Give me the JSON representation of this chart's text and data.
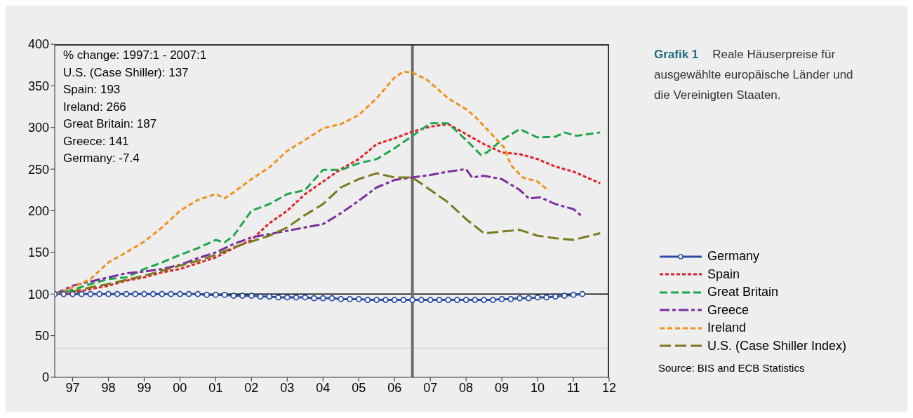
{
  "chart_data": {
    "type": "line",
    "title": "Grafik 1",
    "subtitle": "Reale Häuserpreise für ausgewählte europäische Länder und die Vereinigten Staaten.",
    "annotations": [
      "% change: 1997:1 - 2007:1",
      "U.S. (Case Shiller): 137",
      "Spain: 193",
      "Ireland: 266",
      "Great Britain: 187",
      "Greece: 141",
      "Germany: -7.4",
      "Source: BIS and ECB  Statistics"
    ],
    "xlim": [
      "1997-01",
      "2012-07"
    ],
    "xticks": [
      {
        "value": "1997-07",
        "label": "97"
      },
      {
        "value": "1998-07",
        "label": "98"
      },
      {
        "value": "1999-07",
        "label": "99"
      },
      {
        "value": "2000-07",
        "label": "00"
      },
      {
        "value": "2001-07",
        "label": "01"
      },
      {
        "value": "2002-07",
        "label": "02"
      },
      {
        "value": "2003-07",
        "label": "03"
      },
      {
        "value": "2004-07",
        "label": "04"
      },
      {
        "value": "2005-07",
        "label": "05"
      },
      {
        "value": "2006-07",
        "label": "06"
      },
      {
        "value": "2007-07",
        "label": "07"
      },
      {
        "value": "2008-07",
        "label": "08"
      },
      {
        "value": "2009-07",
        "label": "09"
      },
      {
        "value": "2010-07",
        "label": "10"
      },
      {
        "value": "2011-07",
        "label": "11"
      },
      {
        "value": "2012-07",
        "label": "12"
      }
    ],
    "ylim": [
      0,
      400
    ],
    "yticks": [
      0,
      50,
      100,
      150,
      200,
      250,
      300,
      350,
      400
    ],
    "legend": "right",
    "grid": false,
    "ref_lines": [
      {
        "axis": "y",
        "value": 100,
        "color": "#000000"
      },
      {
        "axis": "y",
        "value": 35,
        "color": "#d4d4d4"
      },
      {
        "axis": "x",
        "value": "2007-01",
        "color": "#6e6e6e"
      }
    ],
    "series": [
      {
        "name": "Germany",
        "color": "#2e4ea3",
        "marker": "circle",
        "line_style": "solid",
        "x": [
          "1997-01",
          "1997-04",
          "1997-07",
          "1997-10",
          "1998-01",
          "1998-04",
          "1998-07",
          "1998-10",
          "1999-01",
          "1999-04",
          "1999-07",
          "1999-10",
          "2000-01",
          "2000-04",
          "2000-07",
          "2000-10",
          "2001-01",
          "2001-04",
          "2001-07",
          "2001-10",
          "2002-01",
          "2002-04",
          "2002-07",
          "2002-10",
          "2003-01",
          "2003-04",
          "2003-07",
          "2003-10",
          "2004-01",
          "2004-04",
          "2004-07",
          "2004-10",
          "2005-01",
          "2005-04",
          "2005-07",
          "2005-10",
          "2006-01",
          "2006-04",
          "2006-07",
          "2006-10",
          "2007-01",
          "2007-04",
          "2007-07",
          "2007-10",
          "2008-01",
          "2008-04",
          "2008-07",
          "2008-10",
          "2009-01",
          "2009-04",
          "2009-07",
          "2009-10",
          "2010-01",
          "2010-04",
          "2010-07",
          "2010-10",
          "2011-01",
          "2011-04",
          "2011-07",
          "2011-10"
        ],
        "values": [
          100,
          100,
          100,
          100,
          100,
          100,
          100,
          100,
          100,
          100,
          100,
          100,
          100,
          100,
          100,
          100,
          100,
          99,
          99,
          99,
          98,
          98,
          98,
          97,
          97,
          96,
          96,
          96,
          96,
          95,
          95,
          95,
          94,
          94,
          94,
          93,
          93,
          93,
          93,
          93,
          93,
          93,
          93,
          93,
          93,
          93,
          93,
          93,
          93,
          93,
          94,
          94,
          95,
          95,
          96,
          96,
          97,
          98,
          99,
          100
        ]
      },
      {
        "name": "Spain",
        "color": "#e0202a",
        "marker": "none",
        "line_style": "dashed",
        "x": [
          "1997-01",
          "1997-07",
          "1998-01",
          "1998-07",
          "1999-01",
          "1999-07",
          "2000-01",
          "2000-07",
          "2001-01",
          "2001-07",
          "2002-01",
          "2002-07",
          "2003-01",
          "2003-07",
          "2004-01",
          "2004-07",
          "2005-01",
          "2005-07",
          "2006-01",
          "2006-07",
          "2007-01",
          "2007-07",
          "2008-01",
          "2008-07",
          "2009-01",
          "2009-07",
          "2010-01",
          "2010-07",
          "2011-01",
          "2011-07",
          "2012-04"
        ],
        "values": [
          100,
          101,
          106,
          110,
          116,
          120,
          126,
          130,
          137,
          144,
          155,
          165,
          185,
          200,
          220,
          235,
          250,
          262,
          280,
          287,
          295,
          301,
          304,
          292,
          280,
          270,
          268,
          262,
          253,
          247,
          233
        ]
      },
      {
        "name": "Great Britain",
        "color": "#1fa64a",
        "marker": "none",
        "line_style": "dashed",
        "x": [
          "1997-01",
          "1997-07",
          "1998-01",
          "1998-07",
          "1999-01",
          "1999-07",
          "2000-01",
          "2000-07",
          "2001-01",
          "2001-07",
          "2001-10",
          "2002-01",
          "2002-07",
          "2003-01",
          "2003-07",
          "2004-01",
          "2004-07",
          "2005-01",
          "2005-07",
          "2006-01",
          "2006-07",
          "2007-01",
          "2007-07",
          "2008-01",
          "2008-07",
          "2008-12",
          "2009-02",
          "2009-07",
          "2010-01",
          "2010-07",
          "2011-01",
          "2011-04",
          "2011-08",
          "2012-04"
        ],
        "values": [
          100,
          105,
          112,
          118,
          120,
          130,
          138,
          147,
          155,
          165,
          162,
          170,
          200,
          208,
          220,
          225,
          249,
          249,
          257,
          262,
          275,
          290,
          305,
          305,
          285,
          267,
          270,
          285,
          298,
          288,
          289,
          294,
          290,
          294
        ]
      },
      {
        "name": "Greece",
        "color": "#7b2c9e",
        "marker": "none",
        "line_style": "dashed",
        "x": [
          "1997-01",
          "1997-07",
          "1998-01",
          "1998-07",
          "1999-01",
          "1999-07",
          "2000-01",
          "2000-07",
          "2001-01",
          "2001-07",
          "2002-01",
          "2002-07",
          "2003-01",
          "2003-07",
          "2004-01",
          "2004-07",
          "2005-01",
          "2005-07",
          "2006-01",
          "2006-07",
          "2007-01",
          "2007-07",
          "2008-01",
          "2008-07",
          "2008-09",
          "2009-01",
          "2009-07",
          "2010-01",
          "2010-04",
          "2010-08",
          "2011-01",
          "2011-07",
          "2011-10"
        ],
        "values": [
          100,
          110,
          115,
          120,
          125,
          127,
          130,
          135,
          143,
          150,
          160,
          168,
          172,
          176,
          180,
          184,
          197,
          212,
          228,
          237,
          240,
          243,
          247,
          250,
          240,
          242,
          238,
          225,
          215,
          216,
          208,
          202,
          193
        ]
      },
      {
        "name": "Ireland",
        "color": "#f0921e",
        "marker": "none",
        "line_style": "dashed",
        "x": [
          "1997-01",
          "1997-07",
          "1998-01",
          "1998-07",
          "1999-01",
          "1999-07",
          "2000-01",
          "2000-07",
          "2001-01",
          "2001-07",
          "2001-10",
          "2002-01",
          "2002-07",
          "2003-01",
          "2003-07",
          "2004-01",
          "2004-07",
          "2005-01",
          "2005-07",
          "2006-01",
          "2006-07",
          "2006-10",
          "2007-01",
          "2007-06",
          "2008-01",
          "2008-07",
          "2008-10",
          "2009-02",
          "2009-08",
          "2009-10",
          "2010-02",
          "2010-07",
          "2010-10"
        ],
        "values": [
          100,
          108,
          118,
          138,
          150,
          163,
          180,
          200,
          213,
          220,
          215,
          222,
          238,
          252,
          272,
          285,
          299,
          304,
          315,
          335,
          360,
          367,
          366,
          357,
          335,
          322,
          313,
          298,
          275,
          255,
          240,
          235,
          226
        ]
      },
      {
        "name": "U.S. (Case Shiller Index)",
        "color": "#7a7a1c",
        "marker": "none",
        "line_style": "dashed",
        "x": [
          "1997-01",
          "1997-07",
          "1998-01",
          "1998-07",
          "1999-01",
          "1999-07",
          "2000-01",
          "2000-07",
          "2001-01",
          "2001-07",
          "2002-01",
          "2002-07",
          "2003-01",
          "2003-07",
          "2004-01",
          "2004-07",
          "2005-01",
          "2005-07",
          "2006-01",
          "2006-07",
          "2007-01",
          "2007-07",
          "2008-01",
          "2008-07",
          "2009-01",
          "2009-07",
          "2010-01",
          "2010-07",
          "2011-01",
          "2011-07",
          "2012-04"
        ],
        "values": [
          100,
          103,
          108,
          112,
          117,
          122,
          128,
          134,
          140,
          147,
          156,
          163,
          170,
          180,
          195,
          208,
          228,
          238,
          245,
          240,
          240,
          225,
          210,
          190,
          173,
          175,
          177,
          170,
          167,
          165,
          173
        ]
      }
    ]
  }
}
